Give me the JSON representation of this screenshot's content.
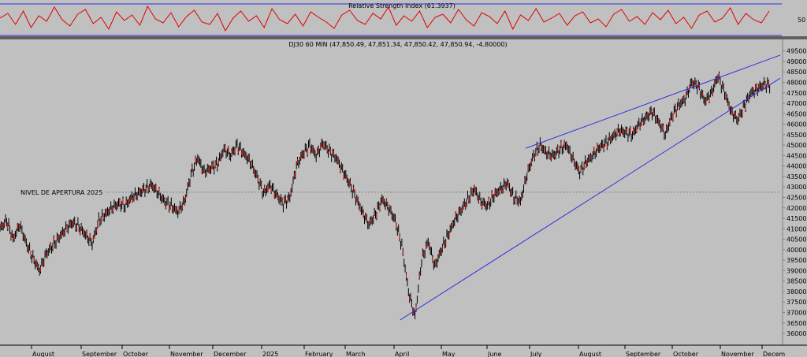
{
  "chart_data": [
    {
      "type": "line",
      "title": "Relative Strength Index (61.3937)",
      "ylim": [
        30,
        72
      ],
      "yticks": [
        50
      ],
      "levels": [
        70,
        30
      ],
      "last_value": 61.3937,
      "series": [
        {
          "values": [
            52,
            58,
            44,
            61,
            40,
            55,
            48,
            66,
            50,
            42,
            57,
            63,
            45,
            53,
            38,
            60,
            49,
            56,
            43,
            67,
            51,
            46,
            59,
            41,
            54,
            62,
            47,
            44,
            58,
            36,
            52,
            61,
            48,
            55,
            40,
            64,
            50,
            45,
            57,
            42,
            60,
            53,
            47,
            39,
            56,
            62,
            49,
            44,
            58,
            51,
            66,
            43,
            55,
            48,
            61,
            40,
            53,
            57,
            46,
            63,
            50,
            42,
            59,
            54,
            45,
            61,
            38,
            56,
            49,
            64,
            47,
            52,
            58,
            43,
            55,
            60,
            46,
            51,
            41,
            57,
            63,
            48,
            54,
            44,
            59,
            50,
            62,
            45,
            53,
            39,
            56,
            61,
            47,
            52,
            65,
            44,
            58,
            50,
            46,
            61
          ]
        }
      ]
    },
    {
      "type": "line",
      "title": "DJ30 60 MIN (47,850.49, 47,851.34, 47,850.42, 47,850.94, -4.80000)",
      "ylim": [
        35550,
        49600
      ],
      "yticks": [
        36000,
        36500,
        37000,
        37500,
        38000,
        38500,
        39000,
        39500,
        40000,
        40500,
        41000,
        41500,
        42000,
        42500,
        43000,
        43500,
        44000,
        44500,
        45000,
        45500,
        46000,
        46500,
        47000,
        47500,
        48000,
        48500,
        49000,
        49500
      ],
      "xlabels": [
        "August",
        "September",
        "October",
        "November",
        "December",
        "2025",
        "February",
        "March",
        "April",
        "May",
        "June",
        "July",
        "August",
        "September",
        "October",
        "November",
        "Decem"
      ],
      "annotation": {
        "text": "NIVEL DE APERTURA 2025",
        "value": 42750
      },
      "series": [
        {
          "values": [
            41000,
            41400,
            40500,
            41200,
            40300,
            39600,
            39000,
            39800,
            40200,
            40600,
            41000,
            41300,
            41100,
            40700,
            40300,
            41400,
            41700,
            42000,
            42200,
            42100,
            42500,
            42700,
            42900,
            43100,
            42700,
            42300,
            42100,
            41800,
            42300,
            43600,
            44400,
            43700,
            43900,
            44100,
            44800,
            44500,
            45000,
            44600,
            44200,
            43500,
            42700,
            43100,
            42600,
            42200,
            42500,
            44000,
            44600,
            45000,
            44500,
            45100,
            44700,
            44400,
            43800,
            43200,
            42500,
            41800,
            41200,
            41700,
            42400,
            42000,
            41400,
            40200,
            38000,
            36800,
            39500,
            40400,
            39200,
            40000,
            40700,
            41400,
            41900,
            42400,
            42900,
            42300,
            42100,
            42600,
            42900,
            43200,
            42500,
            42300,
            43600,
            44500,
            45000,
            44600,
            44500,
            44800,
            45000,
            44300,
            43700,
            44200,
            44500,
            44900,
            45100,
            45400,
            45700,
            45600,
            45500,
            46000,
            46300,
            46600,
            46100,
            45500,
            46400,
            46900,
            47200,
            48000,
            47800,
            47100,
            47500,
            48300,
            47500,
            46600,
            46200,
            46900,
            47500,
            47700,
            47900,
            47850
          ]
        }
      ],
      "trendlines": [
        {
          "from": [
            "April",
            36650
          ],
          "to": [
            "Decem",
            48200
          ]
        },
        {
          "from": [
            "July",
            44850
          ],
          "to": [
            "Decem",
            49300
          ]
        }
      ]
    }
  ]
}
